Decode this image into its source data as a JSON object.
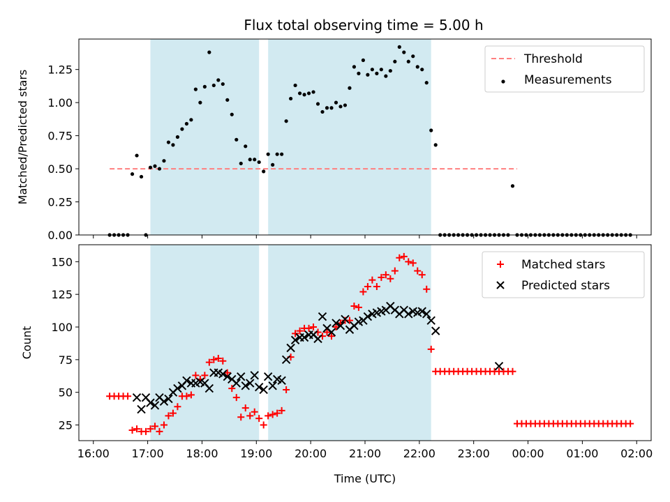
{
  "chart_data": [
    {
      "type": "scatter",
      "title": "Flux total observing time = 5.00 h",
      "xlabel": "",
      "ylabel": "Matched/Predicted stars",
      "xlim": [
        "16:00",
        "02:00"
      ],
      "ylim": [
        0,
        1.48
      ],
      "yticks": [
        0.0,
        0.25,
        0.5,
        0.75,
        1.0,
        1.25
      ],
      "ytick_labels": [
        "0.00",
        "0.25",
        "0.50",
        "0.75",
        "1.00",
        "1.25"
      ],
      "shaded_intervals": [
        [
          "17:03",
          "19:03"
        ],
        [
          "19:13",
          "22:13"
        ]
      ],
      "shade_color": "#add8e6",
      "legend": {
        "position": "top-right",
        "entries": [
          "Threshold",
          "Measurements"
        ]
      },
      "series": [
        {
          "name": "Threshold",
          "style": "dashed-line",
          "color": "#ff7f7f",
          "x": [
            "16:18",
            "23:48"
          ],
          "y": [
            0.5,
            0.5
          ]
        },
        {
          "name": "Measurements",
          "style": "dot",
          "color": "#000000",
          "x": [
            "16:18",
            "16:23",
            "16:28",
            "16:33",
            "16:38",
            "16:43",
            "16:48",
            "16:53",
            "16:58",
            "17:03",
            "17:08",
            "17:13",
            "17:18",
            "17:23",
            "17:28",
            "17:33",
            "17:38",
            "17:43",
            "17:48",
            "17:53",
            "17:58",
            "18:03",
            "18:08",
            "18:13",
            "18:18",
            "18:23",
            "18:28",
            "18:33",
            "18:38",
            "18:43",
            "18:48",
            "18:53",
            "18:58",
            "19:03",
            "19:08",
            "19:13",
            "19:18",
            "19:23",
            "19:28",
            "19:33",
            "19:38",
            "19:43",
            "19:48",
            "19:53",
            "19:58",
            "20:03",
            "20:08",
            "20:13",
            "20:18",
            "20:23",
            "20:28",
            "20:33",
            "20:38",
            "20:43",
            "20:48",
            "20:53",
            "20:58",
            "21:03",
            "21:08",
            "21:13",
            "21:18",
            "21:23",
            "21:28",
            "21:33",
            "21:38",
            "21:43",
            "21:48",
            "21:53",
            "21:58",
            "22:03",
            "22:08",
            "22:13",
            "22:18",
            "22:23",
            "22:28",
            "22:33",
            "22:38",
            "22:43",
            "22:48",
            "22:53",
            "22:58",
            "23:03",
            "23:08",
            "23:13",
            "23:18",
            "23:23",
            "23:28",
            "23:33",
            "23:38",
            "23:43",
            "23:48",
            "23:53",
            "23:58",
            "00:03",
            "00:08",
            "00:13",
            "00:18",
            "00:23",
            "00:28",
            "00:33",
            "00:38",
            "00:43",
            "00:48",
            "00:53",
            "00:58",
            "01:03",
            "01:08",
            "01:13",
            "01:18",
            "01:23",
            "01:28",
            "01:33",
            "01:38",
            "01:43",
            "01:48",
            "01:53"
          ],
          "y": [
            0,
            0,
            0,
            0,
            0,
            0.46,
            0.6,
            0.44,
            0,
            0.51,
            0.52,
            0.5,
            0.56,
            0.7,
            0.68,
            0.74,
            0.8,
            0.84,
            0.87,
            1.1,
            1.0,
            1.12,
            1.38,
            1.13,
            1.17,
            1.14,
            1.02,
            0.91,
            0.72,
            0.54,
            0.67,
            0.57,
            0.57,
            0.55,
            0.48,
            0.61,
            0.53,
            0.61,
            0.61,
            0.86,
            1.03,
            1.13,
            1.07,
            1.06,
            1.07,
            1.08,
            0.99,
            0.93,
            0.96,
            0.96,
            1.0,
            0.97,
            0.98,
            1.11,
            1.27,
            1.22,
            1.32,
            1.21,
            1.25,
            1.22,
            1.25,
            1.2,
            1.24,
            1.31,
            1.42,
            1.38,
            1.31,
            1.35,
            1.27,
            1.25,
            1.15,
            0.79,
            0.68,
            0,
            0,
            0,
            0,
            0,
            0,
            0,
            0,
            0,
            0,
            0,
            0,
            0,
            0,
            0,
            0,
            0.37,
            0,
            0,
            0,
            0,
            0,
            0,
            0,
            0,
            0,
            0,
            0,
            0,
            0,
            0,
            0,
            0,
            0,
            0,
            0,
            0,
            0,
            0,
            0,
            0,
            0,
            0
          ]
        }
      ]
    },
    {
      "type": "scatter",
      "title": "",
      "xlabel": "Time (UTC)",
      "ylabel": "Count",
      "xlim": [
        "16:00",
        "02:00"
      ],
      "ylim": [
        13,
        163
      ],
      "xticks": [
        "16:00",
        "17:00",
        "18:00",
        "19:00",
        "20:00",
        "21:00",
        "22:00",
        "23:00",
        "00:00",
        "01:00",
        "02:00"
      ],
      "yticks": [
        25,
        50,
        75,
        100,
        125,
        150
      ],
      "shaded_intervals": [
        [
          "17:03",
          "19:03"
        ],
        [
          "19:13",
          "22:13"
        ]
      ],
      "shade_color": "#add8e6",
      "legend": {
        "position": "top-right",
        "entries": [
          "Matched stars",
          "Predicted stars"
        ]
      },
      "series": [
        {
          "name": "Matched stars",
          "marker": "plus",
          "color": "#ff0000",
          "x": [
            "16:18",
            "16:23",
            "16:28",
            "16:33",
            "16:38",
            "16:43",
            "16:48",
            "16:53",
            "16:58",
            "17:03",
            "17:08",
            "17:13",
            "17:18",
            "17:23",
            "17:28",
            "17:33",
            "17:38",
            "17:43",
            "17:48",
            "17:53",
            "17:58",
            "18:03",
            "18:08",
            "18:13",
            "18:18",
            "18:23",
            "18:28",
            "18:33",
            "18:38",
            "18:43",
            "18:48",
            "18:53",
            "18:58",
            "19:03",
            "19:08",
            "19:13",
            "19:18",
            "19:23",
            "19:28",
            "19:33",
            "19:38",
            "19:43",
            "19:48",
            "19:53",
            "19:58",
            "20:03",
            "20:08",
            "20:13",
            "20:18",
            "20:23",
            "20:28",
            "20:33",
            "20:38",
            "20:43",
            "20:48",
            "20:53",
            "20:58",
            "21:03",
            "21:08",
            "21:13",
            "21:18",
            "21:23",
            "21:28",
            "21:33",
            "21:38",
            "21:43",
            "21:48",
            "21:53",
            "21:58",
            "22:03",
            "22:08",
            "22:13",
            "22:18",
            "22:23",
            "22:28",
            "22:33",
            "22:38",
            "22:43",
            "22:48",
            "22:53",
            "22:58",
            "23:03",
            "23:08",
            "23:13",
            "23:18",
            "23:23",
            "23:28",
            "23:33",
            "23:38",
            "23:43",
            "23:48",
            "23:53",
            "23:58",
            "00:03",
            "00:08",
            "00:13",
            "00:18",
            "00:23",
            "00:28",
            "00:33",
            "00:38",
            "00:43",
            "00:48",
            "00:53",
            "00:58",
            "01:03",
            "01:08",
            "01:13",
            "01:18",
            "01:23",
            "01:28",
            "01:33",
            "01:38",
            "01:43",
            "01:48",
            "01:53"
          ],
          "y": [
            47,
            47,
            47,
            47,
            47,
            21,
            22,
            20,
            20,
            22,
            24,
            20,
            25,
            32,
            34,
            39,
            47,
            47,
            48,
            63,
            60,
            63,
            73,
            75,
            76,
            74,
            65,
            53,
            46,
            31,
            38,
            32,
            35,
            30,
            25,
            32,
            33,
            34,
            36,
            52,
            77,
            95,
            97,
            99,
            99,
            100,
            96,
            93,
            96,
            93,
            100,
            103,
            105,
            105,
            116,
            115,
            127,
            131,
            136,
            131,
            138,
            140,
            137,
            143,
            153,
            154,
            150,
            149,
            143,
            140,
            129,
            83,
            66,
            66,
            66,
            66,
            66,
            66,
            66,
            66,
            66,
            66,
            66,
            66,
            66,
            66,
            66,
            66,
            66,
            66,
            26,
            26,
            26,
            26,
            26,
            26,
            26,
            26,
            26,
            26,
            26,
            26,
            26,
            26,
            26,
            26,
            26,
            26,
            26,
            26,
            26,
            26,
            26,
            26,
            26,
            26
          ]
        },
        {
          "name": "Predicted stars",
          "marker": "x",
          "color": "#000000",
          "x": [
            "16:48",
            "16:53",
            "16:58",
            "17:03",
            "17:08",
            "17:13",
            "17:18",
            "17:23",
            "17:28",
            "17:33",
            "17:38",
            "17:43",
            "17:48",
            "17:53",
            "17:58",
            "18:03",
            "18:08",
            "18:13",
            "18:18",
            "18:23",
            "18:28",
            "18:33",
            "18:38",
            "18:43",
            "18:48",
            "18:53",
            "18:58",
            "19:03",
            "19:08",
            "19:13",
            "19:18",
            "19:23",
            "19:28",
            "19:33",
            "19:38",
            "19:43",
            "19:48",
            "19:53",
            "19:58",
            "20:03",
            "20:08",
            "20:13",
            "20:18",
            "20:23",
            "20:28",
            "20:33",
            "20:38",
            "20:43",
            "20:48",
            "20:53",
            "20:58",
            "21:03",
            "21:08",
            "21:13",
            "21:18",
            "21:23",
            "21:28",
            "21:33",
            "21:38",
            "21:43",
            "21:48",
            "21:53",
            "21:58",
            "22:03",
            "22:08",
            "22:13",
            "22:18",
            "23:28"
          ],
          "y": [
            46,
            37,
            46,
            42,
            40,
            46,
            43,
            45,
            50,
            53,
            55,
            59,
            57,
            57,
            58,
            57,
            53,
            65,
            65,
            64,
            62,
            60,
            57,
            62,
            55,
            57,
            63,
            54,
            52,
            62,
            55,
            60,
            59,
            75,
            84,
            90,
            92,
            92,
            94,
            94,
            91,
            108,
            99,
            96,
            103,
            101,
            106,
            98,
            101,
            104,
            105,
            108,
            110,
            111,
            112,
            113,
            116,
            113,
            110,
            113,
            110,
            112,
            111,
            112,
            110,
            105,
            97,
            70
          ]
        }
      ]
    }
  ]
}
